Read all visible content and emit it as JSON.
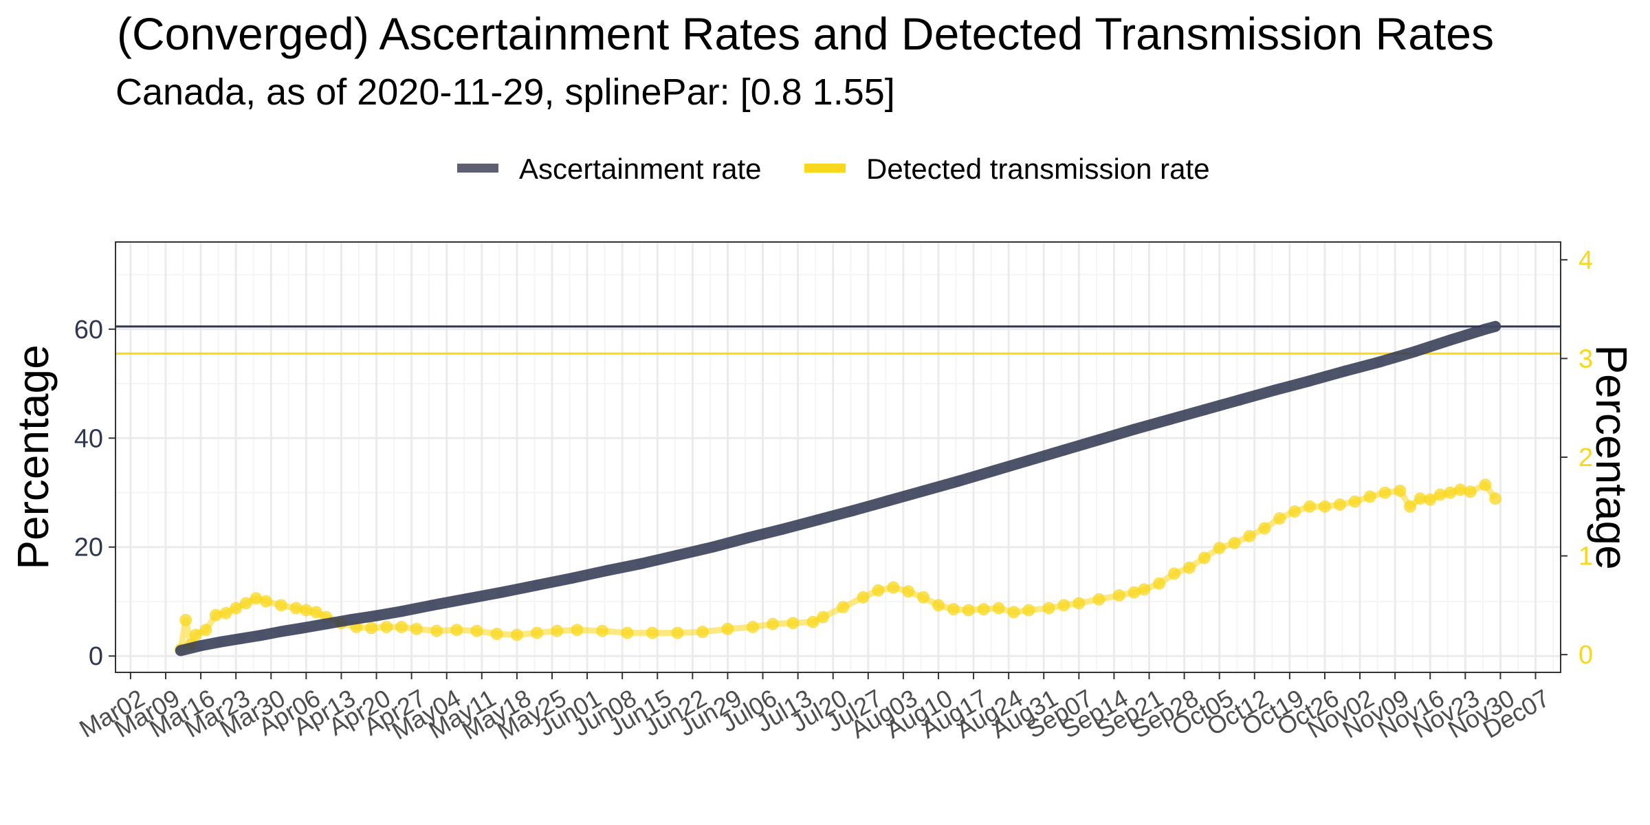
{
  "colors": {
    "ascertainment": "#2e3650",
    "transmission": "#f9d71c",
    "grid_major": "#ebebeb",
    "grid_minor": "#f5f5f5",
    "panel_border": "#333333",
    "x_tick_text": "#4d4d4d"
  },
  "chart_data": {
    "type": "line",
    "title": "(Converged) Ascertainment Rates and Detected Transmission Rates",
    "subtitle": "Canada, as of 2020-11-29, splinePar: [0.8 1.55]",
    "ylabel": "Percentage",
    "ylabel_right": "Percentage",
    "legend_position": "top",
    "grid": true,
    "x_ticks": [
      "Mar02",
      "Mar09",
      "Mar16",
      "Mar23",
      "Mar30",
      "Apr06",
      "Apr13",
      "Apr20",
      "Apr27",
      "May04",
      "May11",
      "May18",
      "May25",
      "Jun01",
      "Jun08",
      "Jun15",
      "Jun22",
      "Jun29",
      "Jul06",
      "Jul13",
      "Jul20",
      "Jul27",
      "Aug03",
      "Aug10",
      "Aug17",
      "Aug24",
      "Aug31",
      "Sep07",
      "Sep14",
      "Sep21",
      "Sep28",
      "Oct05",
      "Oct12",
      "Oct19",
      "Oct26",
      "Nov02",
      "Nov09",
      "Nov16",
      "Nov23",
      "Nov30",
      "Dec07"
    ],
    "xlim": [
      "2020-02-28",
      "2020-12-12"
    ],
    "ylim": [
      -3,
      76
    ],
    "y_ticks": [
      0,
      20,
      40,
      60
    ],
    "ylim_right": [
      -0.18,
      4.18
    ],
    "y_ticks_right": [
      0,
      1,
      2,
      3,
      4
    ],
    "series": [
      {
        "name": "Ascertainment rate",
        "axis": "left",
        "reference_line": 60.5,
        "points": [
          [
            "2020-03-12",
            1.0
          ],
          [
            "2020-03-16",
            1.9
          ],
          [
            "2020-03-20",
            2.6
          ],
          [
            "2020-03-24",
            3.2
          ],
          [
            "2020-03-28",
            3.8
          ],
          [
            "2020-04-01",
            4.5
          ],
          [
            "2020-04-05",
            5.1
          ],
          [
            "2020-04-10",
            5.9
          ],
          [
            "2020-04-15",
            6.7
          ],
          [
            "2020-04-20",
            7.4
          ],
          [
            "2020-04-25",
            8.2
          ],
          [
            "2020-05-01",
            9.3
          ],
          [
            "2020-05-08",
            10.5
          ],
          [
            "2020-05-15",
            11.7
          ],
          [
            "2020-05-22",
            13.0
          ],
          [
            "2020-05-29",
            14.3
          ],
          [
            "2020-06-05",
            15.7
          ],
          [
            "2020-06-12",
            17.0
          ],
          [
            "2020-06-19",
            18.5
          ],
          [
            "2020-06-26",
            20.0
          ],
          [
            "2020-07-03",
            21.7
          ],
          [
            "2020-07-10",
            23.3
          ],
          [
            "2020-07-17",
            25.0
          ],
          [
            "2020-07-24",
            26.7
          ],
          [
            "2020-07-31",
            28.5
          ],
          [
            "2020-08-07",
            30.3
          ],
          [
            "2020-08-14",
            32.1
          ],
          [
            "2020-08-21",
            34.0
          ],
          [
            "2020-08-28",
            35.9
          ],
          [
            "2020-09-04",
            37.8
          ],
          [
            "2020-09-11",
            39.7
          ],
          [
            "2020-09-18",
            41.6
          ],
          [
            "2020-09-25",
            43.4
          ],
          [
            "2020-10-02",
            45.2
          ],
          [
            "2020-10-09",
            47.0
          ],
          [
            "2020-10-16",
            48.8
          ],
          [
            "2020-10-23",
            50.5
          ],
          [
            "2020-10-30",
            52.3
          ],
          [
            "2020-11-06",
            54.0
          ],
          [
            "2020-11-13",
            55.9
          ],
          [
            "2020-11-20",
            58.0
          ],
          [
            "2020-11-27",
            60.0
          ],
          [
            "2020-11-29",
            60.5
          ]
        ]
      },
      {
        "name": "Detected transmission rate",
        "axis": "right",
        "reference_line": 3.05,
        "points": [
          [
            "2020-03-12",
            0.05
          ],
          [
            "2020-03-13",
            0.35
          ],
          [
            "2020-03-14",
            0.1
          ],
          [
            "2020-03-15",
            0.2
          ],
          [
            "2020-03-17",
            0.25
          ],
          [
            "2020-03-19",
            0.4
          ],
          [
            "2020-03-21",
            0.42
          ],
          [
            "2020-03-23",
            0.47
          ],
          [
            "2020-03-25",
            0.52
          ],
          [
            "2020-03-27",
            0.57
          ],
          [
            "2020-03-29",
            0.54
          ],
          [
            "2020-04-01",
            0.5
          ],
          [
            "2020-04-04",
            0.47
          ],
          [
            "2020-04-06",
            0.45
          ],
          [
            "2020-04-08",
            0.43
          ],
          [
            "2020-04-10",
            0.38
          ],
          [
            "2020-04-13",
            0.32
          ],
          [
            "2020-04-16",
            0.28
          ],
          [
            "2020-04-19",
            0.27
          ],
          [
            "2020-04-22",
            0.28
          ],
          [
            "2020-04-25",
            0.28
          ],
          [
            "2020-04-28",
            0.26
          ],
          [
            "2020-05-02",
            0.24
          ],
          [
            "2020-05-06",
            0.25
          ],
          [
            "2020-05-10",
            0.24
          ],
          [
            "2020-05-14",
            0.21
          ],
          [
            "2020-05-18",
            0.2
          ],
          [
            "2020-05-22",
            0.22
          ],
          [
            "2020-05-26",
            0.24
          ],
          [
            "2020-05-30",
            0.25
          ],
          [
            "2020-06-04",
            0.24
          ],
          [
            "2020-06-09",
            0.22
          ],
          [
            "2020-06-14",
            0.22
          ],
          [
            "2020-06-19",
            0.22
          ],
          [
            "2020-06-24",
            0.23
          ],
          [
            "2020-06-29",
            0.26
          ],
          [
            "2020-07-04",
            0.28
          ],
          [
            "2020-07-08",
            0.31
          ],
          [
            "2020-07-12",
            0.32
          ],
          [
            "2020-07-16",
            0.33
          ],
          [
            "2020-07-18",
            0.38
          ],
          [
            "2020-07-22",
            0.48
          ],
          [
            "2020-07-26",
            0.58
          ],
          [
            "2020-07-29",
            0.65
          ],
          [
            "2020-08-01",
            0.68
          ],
          [
            "2020-08-04",
            0.64
          ],
          [
            "2020-08-07",
            0.58
          ],
          [
            "2020-08-10",
            0.5
          ],
          [
            "2020-08-13",
            0.46
          ],
          [
            "2020-08-16",
            0.45
          ],
          [
            "2020-08-19",
            0.46
          ],
          [
            "2020-08-22",
            0.47
          ],
          [
            "2020-08-25",
            0.43
          ],
          [
            "2020-08-28",
            0.45
          ],
          [
            "2020-09-01",
            0.47
          ],
          [
            "2020-09-04",
            0.5
          ],
          [
            "2020-09-07",
            0.52
          ],
          [
            "2020-09-11",
            0.56
          ],
          [
            "2020-09-15",
            0.6
          ],
          [
            "2020-09-18",
            0.63
          ],
          [
            "2020-09-20",
            0.66
          ],
          [
            "2020-09-23",
            0.72
          ],
          [
            "2020-09-26",
            0.82
          ],
          [
            "2020-09-29",
            0.88
          ],
          [
            "2020-10-02",
            0.98
          ],
          [
            "2020-10-05",
            1.08
          ],
          [
            "2020-10-08",
            1.13
          ],
          [
            "2020-10-11",
            1.2
          ],
          [
            "2020-10-14",
            1.28
          ],
          [
            "2020-10-17",
            1.38
          ],
          [
            "2020-10-20",
            1.45
          ],
          [
            "2020-10-23",
            1.5
          ],
          [
            "2020-10-26",
            1.5
          ],
          [
            "2020-10-29",
            1.52
          ],
          [
            "2020-11-01",
            1.55
          ],
          [
            "2020-11-04",
            1.6
          ],
          [
            "2020-11-07",
            1.64
          ],
          [
            "2020-11-10",
            1.66
          ],
          [
            "2020-11-12",
            1.5
          ],
          [
            "2020-11-14",
            1.58
          ],
          [
            "2020-11-16",
            1.57
          ],
          [
            "2020-11-18",
            1.62
          ],
          [
            "2020-11-20",
            1.64
          ],
          [
            "2020-11-22",
            1.67
          ],
          [
            "2020-11-24",
            1.65
          ],
          [
            "2020-11-27",
            1.72
          ],
          [
            "2020-11-29",
            1.58
          ]
        ]
      }
    ]
  }
}
